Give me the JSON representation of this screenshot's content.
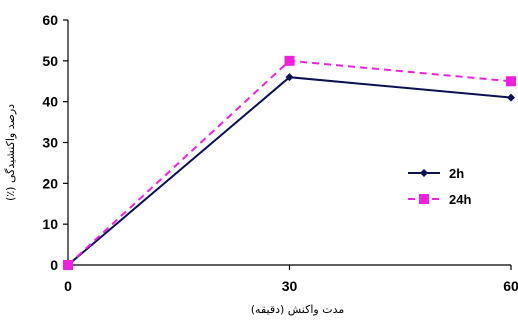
{
  "chart_data": {
    "type": "line",
    "title": "",
    "xlabel": "مدت واکنش (دقیقه)",
    "ylabel": "درصد واکنشیدگی (٪)",
    "x": [
      0,
      30,
      60
    ],
    "xlim": [
      0,
      60
    ],
    "ylim": [
      0,
      60
    ],
    "x_ticks": [
      "0",
      "30",
      "60"
    ],
    "y_ticks": [
      "0",
      "10",
      "20",
      "30",
      "40",
      "50",
      "60"
    ],
    "grid": false,
    "legend_position": "right",
    "series": [
      {
        "name": "2h",
        "values": [
          0,
          46,
          41
        ],
        "color": "#0a1050",
        "marker": "diamond",
        "line": "solid"
      },
      {
        "name": "24h",
        "values": [
          0,
          50,
          45
        ],
        "color": "#ee22dd",
        "marker": "square",
        "line": "dashed"
      }
    ]
  }
}
